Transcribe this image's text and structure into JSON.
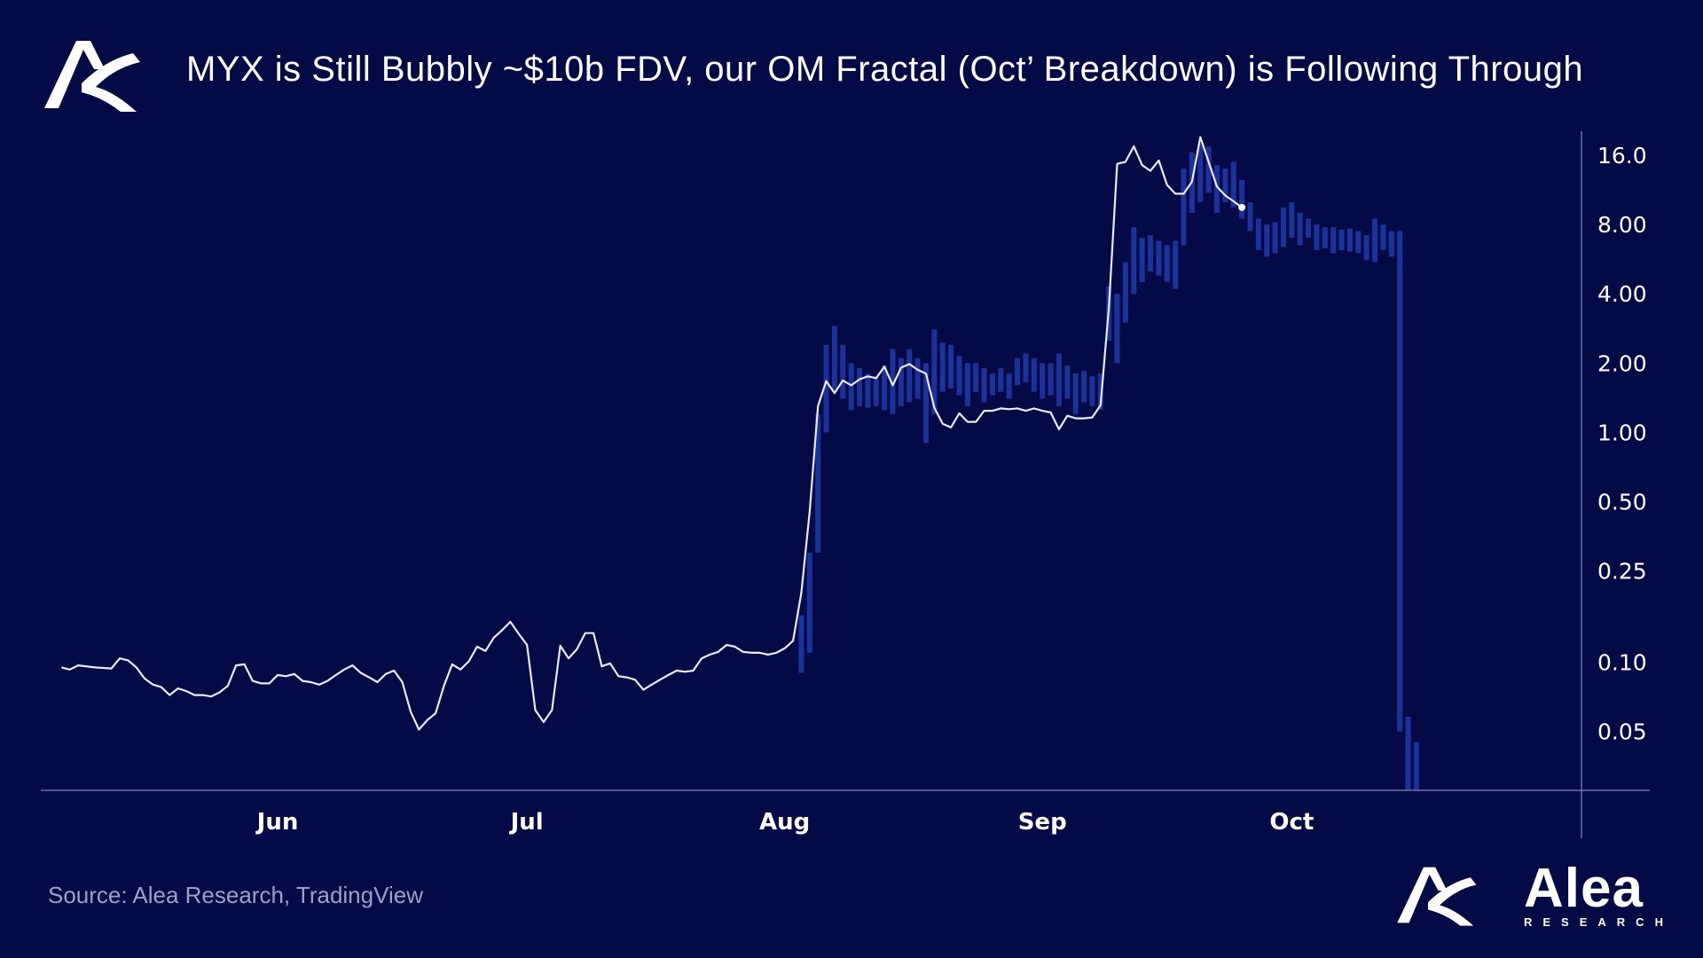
{
  "header": {
    "title": "MYX is Still Bubbly ~$10b FDV, our OM Fractal (Oct’ Breakdown) is Following Through",
    "logo_icon": "alea-logo-icon"
  },
  "footer": {
    "source": "Source: Alea Research, TradingView",
    "brand_name": "Alea",
    "brand_sub": "RESEARCH"
  },
  "colors": {
    "background": "#030a45",
    "fractal_line": "#e8eaf4",
    "price_candles": "#1e3aa8",
    "axis": "#6a73a8"
  },
  "chart_data": {
    "type": "line",
    "y_scale": "log",
    "ylim": [
      0.028,
      20
    ],
    "y_ticks": [
      {
        "value": 16,
        "label": "16.0"
      },
      {
        "value": 8,
        "label": "8.00"
      },
      {
        "value": 4,
        "label": "4.00"
      },
      {
        "value": 2,
        "label": "2.00"
      },
      {
        "value": 1,
        "label": "1.00"
      },
      {
        "value": 0.5,
        "label": "0.50"
      },
      {
        "value": 0.25,
        "label": "0.25"
      },
      {
        "value": 0.1,
        "label": "0.10"
      },
      {
        "value": 0.05,
        "label": "0.05"
      }
    ],
    "x_ticks": [
      {
        "day": 28,
        "label": "Jun"
      },
      {
        "day": 58,
        "label": "Jul"
      },
      {
        "day": 89,
        "label": "Aug"
      },
      {
        "day": 120,
        "label": "Sep"
      },
      {
        "day": 150,
        "label": "Oct"
      }
    ],
    "xlim": [
      1,
      176
    ],
    "grid": false,
    "legend": "none",
    "series": [
      {
        "style": "line",
        "points": [
          [
            2,
            0.095
          ],
          [
            3,
            0.093
          ],
          [
            4,
            0.097
          ],
          [
            6,
            0.095
          ],
          [
            8,
            0.094
          ],
          [
            9,
            0.104
          ],
          [
            10,
            0.102
          ],
          [
            11,
            0.095
          ],
          [
            12,
            0.085
          ],
          [
            13,
            0.08
          ],
          [
            14,
            0.078
          ],
          [
            15,
            0.072
          ],
          [
            16,
            0.077
          ],
          [
            17,
            0.075
          ],
          [
            18,
            0.072
          ],
          [
            19,
            0.072
          ],
          [
            20,
            0.071
          ],
          [
            21,
            0.074
          ],
          [
            22,
            0.079
          ],
          [
            23,
            0.097
          ],
          [
            24,
            0.098
          ],
          [
            25,
            0.083
          ],
          [
            26,
            0.081
          ],
          [
            27,
            0.081
          ],
          [
            28,
            0.088
          ],
          [
            29,
            0.087
          ],
          [
            30,
            0.089
          ],
          [
            31,
            0.083
          ],
          [
            32,
            0.082
          ],
          [
            33,
            0.08
          ],
          [
            34,
            0.083
          ],
          [
            35,
            0.088
          ],
          [
            36,
            0.093
          ],
          [
            37,
            0.097
          ],
          [
            38,
            0.09
          ],
          [
            39,
            0.086
          ],
          [
            40,
            0.082
          ],
          [
            41,
            0.089
          ],
          [
            42,
            0.092
          ],
          [
            43,
            0.082
          ],
          [
            44,
            0.061
          ],
          [
            45,
            0.051
          ],
          [
            46,
            0.056
          ],
          [
            47,
            0.06
          ],
          [
            48,
            0.079
          ],
          [
            49,
            0.098
          ],
          [
            50,
            0.093
          ],
          [
            51,
            0.101
          ],
          [
            52,
            0.117
          ],
          [
            53,
            0.112
          ],
          [
            54,
            0.128
          ],
          [
            55,
            0.138
          ],
          [
            56,
            0.15
          ],
          [
            57,
            0.133
          ],
          [
            58,
            0.119
          ],
          [
            59,
            0.062
          ],
          [
            60,
            0.055
          ],
          [
            61,
            0.062
          ],
          [
            62,
            0.118
          ],
          [
            63,
            0.104
          ],
          [
            64,
            0.114
          ],
          [
            65,
            0.134
          ],
          [
            66,
            0.134
          ],
          [
            67,
            0.096
          ],
          [
            68,
            0.099
          ],
          [
            69,
            0.087
          ],
          [
            70,
            0.086
          ],
          [
            71,
            0.084
          ],
          [
            72,
            0.076
          ],
          [
            73,
            0.08
          ],
          [
            74,
            0.084
          ],
          [
            75,
            0.088
          ],
          [
            76,
            0.092
          ],
          [
            77,
            0.091
          ],
          [
            78,
            0.092
          ],
          [
            79,
            0.104
          ],
          [
            80,
            0.108
          ],
          [
            81,
            0.111
          ],
          [
            82,
            0.119
          ],
          [
            83,
            0.117
          ],
          [
            84,
            0.111
          ],
          [
            85,
            0.11
          ],
          [
            86,
            0.11
          ],
          [
            87,
            0.108
          ],
          [
            88,
            0.11
          ],
          [
            89,
            0.115
          ],
          [
            90,
            0.124
          ],
          [
            91,
            0.2
          ],
          [
            92,
            0.45
          ],
          [
            93,
            1.3
          ],
          [
            94,
            1.67
          ],
          [
            95,
            1.48
          ],
          [
            96,
            1.68
          ],
          [
            97,
            1.6
          ],
          [
            98,
            1.7
          ],
          [
            99,
            1.75
          ],
          [
            100,
            1.72
          ],
          [
            101,
            1.93
          ],
          [
            102,
            1.6
          ],
          [
            103,
            1.91
          ],
          [
            104,
            1.98
          ],
          [
            105,
            1.87
          ],
          [
            106,
            1.8
          ],
          [
            107,
            1.28
          ],
          [
            108,
            1.09
          ],
          [
            109,
            1.05
          ],
          [
            110,
            1.21
          ],
          [
            111,
            1.11
          ],
          [
            112,
            1.11
          ],
          [
            113,
            1.24
          ],
          [
            114,
            1.24
          ],
          [
            115,
            1.27
          ],
          [
            116,
            1.26
          ],
          [
            117,
            1.27
          ],
          [
            118,
            1.24
          ],
          [
            119,
            1.27
          ],
          [
            120,
            1.24
          ],
          [
            121,
            1.22
          ],
          [
            122,
            1.03
          ],
          [
            123,
            1.18
          ],
          [
            124,
            1.15
          ],
          [
            125,
            1.15
          ],
          [
            126,
            1.16
          ],
          [
            127,
            1.31
          ],
          [
            128,
            3.5
          ],
          [
            129,
            14.7
          ],
          [
            130,
            15.0
          ],
          [
            131,
            17.5
          ],
          [
            132,
            14.5
          ],
          [
            133,
            13.7
          ],
          [
            134,
            15.2
          ],
          [
            135,
            11.9
          ],
          [
            136,
            10.9
          ],
          [
            137,
            10.9
          ],
          [
            138,
            12.3
          ],
          [
            139,
            19.2
          ],
          [
            140,
            15.0
          ],
          [
            141,
            11.7
          ],
          [
            142,
            10.7
          ],
          [
            143,
            10.1
          ],
          [
            144,
            9.5
          ]
        ]
      },
      {
        "style": "candles",
        "bars": [
          [
            91,
            0.09,
            0.16
          ],
          [
            92,
            0.11,
            0.3
          ],
          [
            93,
            0.3,
            1.2
          ],
          [
            94,
            1.0,
            2.4
          ],
          [
            95,
            1.5,
            2.9
          ],
          [
            96,
            1.4,
            2.4
          ],
          [
            97,
            1.25,
            2.0
          ],
          [
            98,
            1.3,
            1.9
          ],
          [
            99,
            1.28,
            1.8
          ],
          [
            100,
            1.3,
            1.75
          ],
          [
            101,
            1.25,
            1.95
          ],
          [
            102,
            1.2,
            2.3
          ],
          [
            103,
            1.3,
            2.1
          ],
          [
            104,
            1.35,
            2.3
          ],
          [
            105,
            1.4,
            2.1
          ],
          [
            106,
            0.9,
            2.0
          ],
          [
            107,
            1.2,
            2.8
          ],
          [
            108,
            1.5,
            2.45
          ],
          [
            109,
            1.55,
            2.4
          ],
          [
            110,
            1.45,
            2.15
          ],
          [
            111,
            1.3,
            2.0
          ],
          [
            112,
            1.5,
            2.0
          ],
          [
            113,
            1.35,
            1.9
          ],
          [
            114,
            1.45,
            1.8
          ],
          [
            115,
            1.5,
            1.9
          ],
          [
            116,
            1.4,
            1.8
          ],
          [
            117,
            1.6,
            2.1
          ],
          [
            118,
            1.65,
            2.2
          ],
          [
            119,
            1.5,
            2.1
          ],
          [
            120,
            1.4,
            2.0
          ],
          [
            121,
            1.45,
            2.0
          ],
          [
            122,
            1.3,
            2.2
          ],
          [
            123,
            1.4,
            1.95
          ],
          [
            124,
            1.2,
            1.8
          ],
          [
            125,
            1.35,
            1.85
          ],
          [
            126,
            1.3,
            1.75
          ],
          [
            127,
            1.25,
            1.8
          ],
          [
            128,
            2.5,
            4.3
          ],
          [
            129,
            2.0,
            4.0
          ],
          [
            130,
            3.0,
            5.5
          ],
          [
            131,
            4.0,
            7.8
          ],
          [
            132,
            4.5,
            7.0
          ],
          [
            133,
            5.0,
            7.2
          ],
          [
            134,
            4.8,
            6.8
          ],
          [
            135,
            4.5,
            6.5
          ],
          [
            136,
            4.2,
            6.8
          ],
          [
            137,
            6.5,
            14.0
          ],
          [
            138,
            9.0,
            16.5
          ],
          [
            139,
            10.0,
            18.0
          ],
          [
            140,
            11.0,
            17.5
          ],
          [
            141,
            9.0,
            14.5
          ],
          [
            142,
            10.0,
            14.0
          ],
          [
            143,
            9.5,
            15.0
          ],
          [
            144,
            8.5,
            12.5
          ],
          [
            145,
            7.5,
            10.0
          ],
          [
            146,
            6.2,
            8.5
          ],
          [
            147,
            5.8,
            8.0
          ],
          [
            148,
            6.0,
            8.2
          ],
          [
            149,
            6.4,
            9.5
          ],
          [
            150,
            7.0,
            10.0
          ],
          [
            151,
            6.5,
            9.0
          ],
          [
            152,
            7.0,
            8.5
          ],
          [
            153,
            6.2,
            8.0
          ],
          [
            154,
            6.3,
            7.8
          ],
          [
            155,
            6.0,
            7.8
          ],
          [
            156,
            6.2,
            7.6
          ],
          [
            157,
            6.1,
            7.7
          ],
          [
            158,
            6.0,
            7.5
          ],
          [
            159,
            5.6,
            7.2
          ],
          [
            160,
            5.5,
            8.5
          ],
          [
            161,
            6.2,
            8.0
          ],
          [
            162,
            5.8,
            7.5
          ],
          [
            163,
            0.05,
            7.5
          ],
          [
            164,
            0.028,
            0.058
          ],
          [
            165,
            0.028,
            0.045
          ]
        ]
      }
    ]
  }
}
